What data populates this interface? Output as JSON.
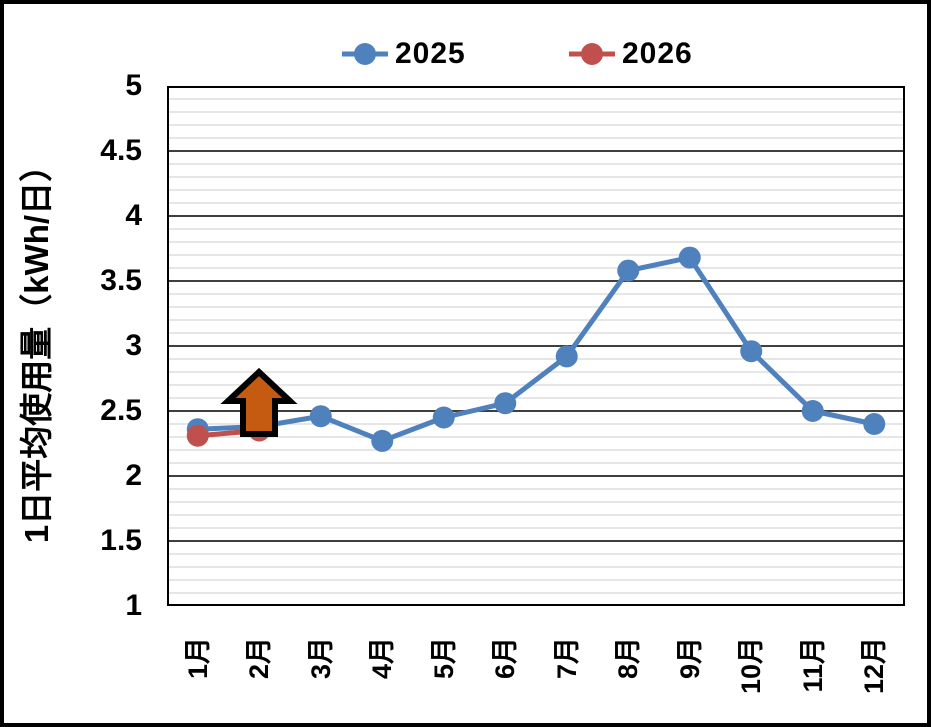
{
  "chart_data": {
    "type": "line",
    "title": "",
    "categories": [
      "1月",
      "2月",
      "3月",
      "4月",
      "5月",
      "6月",
      "7月",
      "8月",
      "9月",
      "10月",
      "11月",
      "12月"
    ],
    "series": [
      {
        "name": "2025",
        "color": "#4F81BD",
        "values": [
          2.36,
          2.38,
          2.46,
          2.27,
          2.45,
          2.56,
          2.92,
          3.58,
          3.68,
          2.96,
          2.5,
          2.4
        ]
      },
      {
        "name": "2026",
        "color": "#C0504D",
        "values": [
          2.31,
          2.35
        ]
      }
    ],
    "xlabel": "",
    "ylabel": "1日平均使用量（kWh/日）",
    "ylim": [
      1,
      5
    ],
    "y_ticks": [
      "5",
      "4.5",
      "4",
      "3.5",
      "3",
      "2.5",
      "2",
      "1.5",
      "1"
    ],
    "y_major_step": 0.5,
    "y_minor_step": 0.1,
    "grid": true,
    "legend_position": "top",
    "annotation": {
      "type": "up-arrow",
      "category": "2月",
      "color": "#C55A11",
      "outline": "#000000"
    }
  },
  "legend": {
    "items": [
      {
        "label": "2025",
        "color": "#4F81BD"
      },
      {
        "label": "2026",
        "color": "#C0504D"
      }
    ]
  },
  "colors": {
    "background": "#FFFFFF",
    "frame_border": "#000000",
    "plot_border": "#000000",
    "grid_major": "#3F3F3F",
    "grid_minor": "#D8D8D8",
    "text": "#000000"
  }
}
